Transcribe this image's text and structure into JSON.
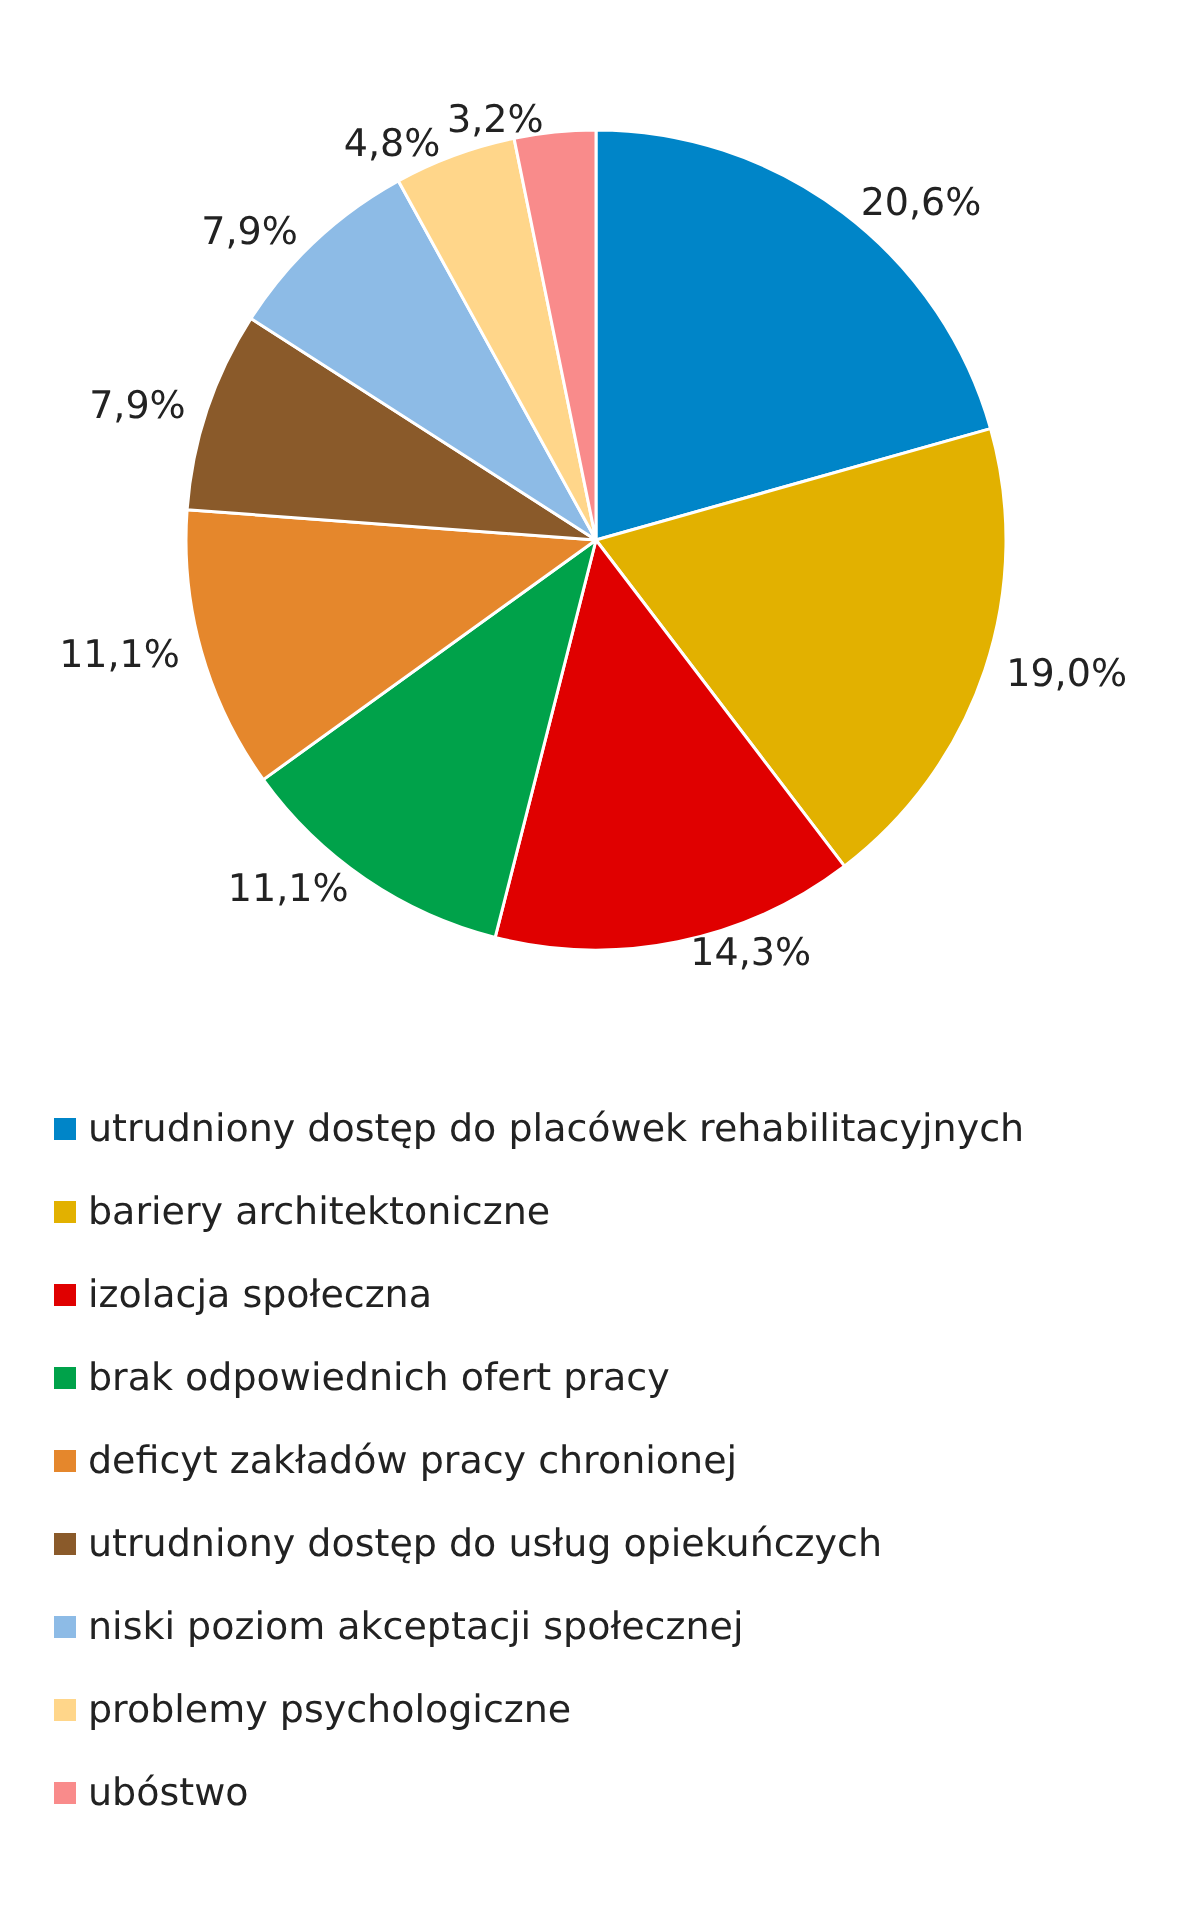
{
  "chart_data": {
    "type": "pie",
    "categories": [
      "utrudniony dostęp do placówek rehabilitacyjnych",
      "bariery architektoniczne",
      "izolacja społeczna",
      "brak odpowiednich ofert pracy",
      "deficyt zakładów pracy chronionej",
      "utrudniony dostęp do usług opiekuńczych",
      "niski poziom akceptacji społecznej",
      "problemy psychologiczne",
      "ubóstwo"
    ],
    "values": [
      20.6,
      19.0,
      14.3,
      11.1,
      11.1,
      7.9,
      7.9,
      4.8,
      3.2
    ],
    "value_labels": [
      "20,6%",
      "19,0%",
      "14,3%",
      "11,1%",
      "11,1%",
      "7,9%",
      "7,9%",
      "4,8%",
      "3,2%"
    ],
    "colors": [
      "#0085c8",
      "#e2b100",
      "#e00000",
      "#00a24a",
      "#e5872c",
      "#8a5a2a",
      "#8dbbe6",
      "#ffd68a",
      "#f98b8b"
    ],
    "legend": "bottom"
  }
}
